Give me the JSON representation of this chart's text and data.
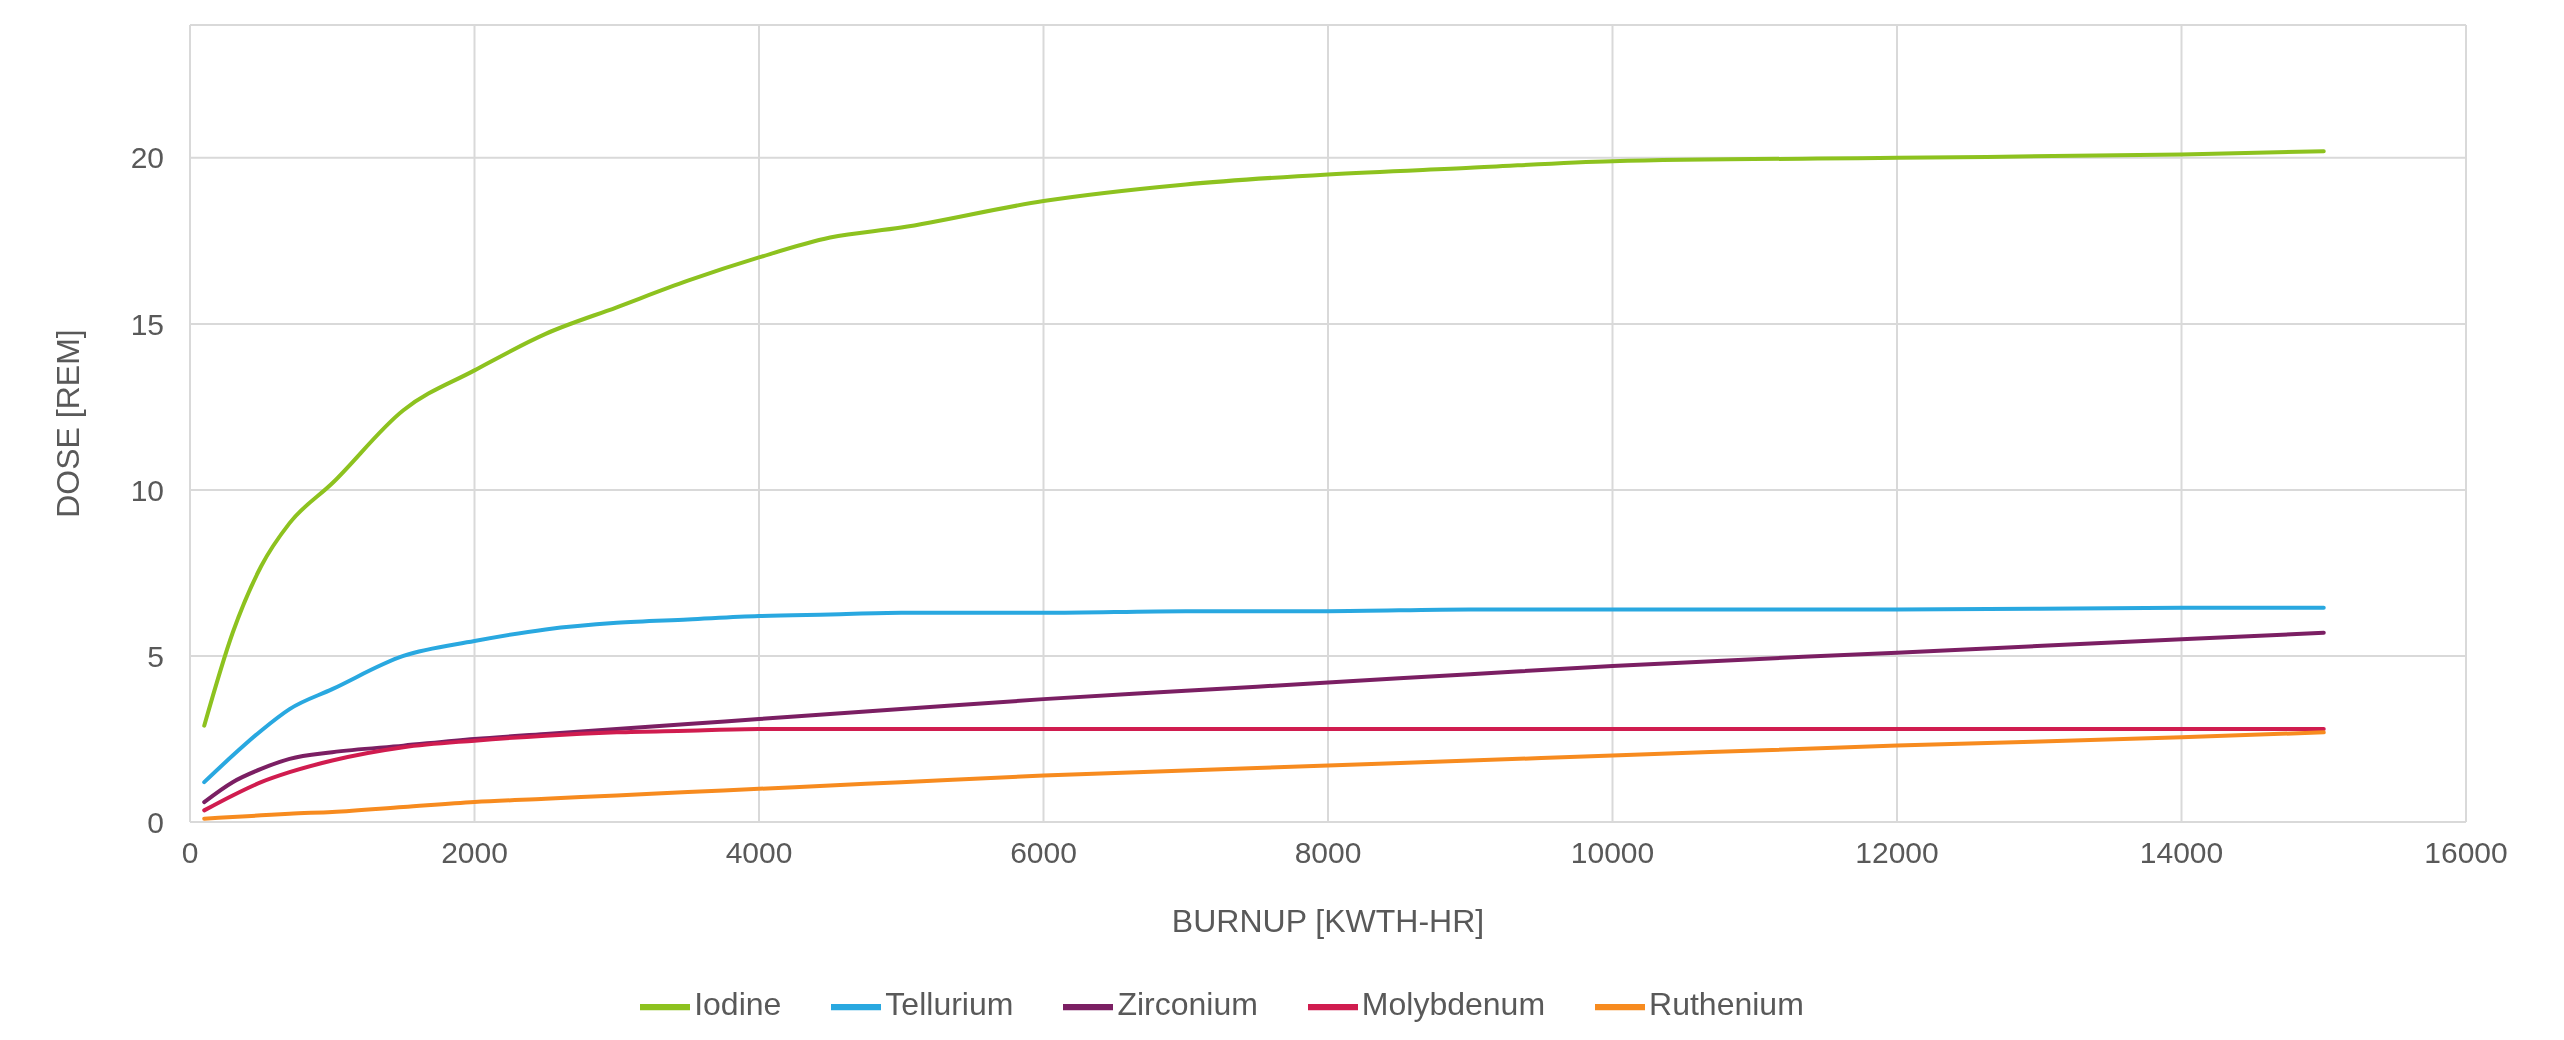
{
  "chart_data": {
    "type": "line",
    "xlabel": "BURNUP [KWTH-HR]",
    "ylabel": "DOSE [REM]",
    "x": [
      100,
      300,
      500,
      700,
      1000,
      1500,
      2000,
      2500,
      3000,
      3500,
      4000,
      4500,
      5000,
      6000,
      7000,
      8000,
      9000,
      10000,
      12000,
      14000,
      15000
    ],
    "series": [
      {
        "name": "Iodine",
        "color": "#8dc21f",
        "values": [
          2.9,
          5.7,
          7.7,
          9.0,
          10.2,
          12.4,
          13.6,
          14.7,
          15.5,
          16.3,
          17.0,
          17.6,
          17.9,
          18.7,
          19.2,
          19.5,
          19.7,
          19.9,
          20.0,
          20.1,
          20.2
        ]
      },
      {
        "name": "Tellurium",
        "color": "#29a8e0",
        "values": [
          1.2,
          2.0,
          2.75,
          3.4,
          4.0,
          5.0,
          5.45,
          5.8,
          6.0,
          6.1,
          6.2,
          6.25,
          6.3,
          6.3,
          6.35,
          6.35,
          6.4,
          6.4,
          6.4,
          6.45,
          6.45
        ]
      },
      {
        "name": "Zirconium",
        "color": "#7b1f63",
        "values": [
          0.6,
          1.2,
          1.6,
          1.9,
          2.1,
          2.3,
          2.5,
          2.65,
          2.8,
          2.95,
          3.1,
          3.25,
          3.4,
          3.7,
          3.95,
          4.2,
          4.45,
          4.7,
          5.1,
          5.5,
          5.7
        ]
      },
      {
        "name": "Molybdenum",
        "color": "#d01c4f",
        "values": [
          0.35,
          0.8,
          1.2,
          1.5,
          1.85,
          2.25,
          2.45,
          2.6,
          2.7,
          2.75,
          2.8,
          2.8,
          2.8,
          2.8,
          2.8,
          2.8,
          2.8,
          2.8,
          2.8,
          2.8,
          2.8
        ]
      },
      {
        "name": "Ruthenium",
        "color": "#f78b1f",
        "values": [
          0.1,
          0.15,
          0.2,
          0.25,
          0.3,
          0.45,
          0.6,
          0.7,
          0.8,
          0.9,
          1.0,
          1.1,
          1.2,
          1.4,
          1.55,
          1.7,
          1.85,
          2.0,
          2.3,
          2.55,
          2.7
        ]
      }
    ],
    "xlim": [
      0,
      16000
    ],
    "xticks": [
      0,
      2000,
      4000,
      6000,
      8000,
      10000,
      12000,
      14000,
      16000
    ],
    "ylim": [
      0,
      24
    ],
    "yticks": [
      0,
      5,
      10,
      15,
      20
    ],
    "grid": true,
    "legend": "bottom",
    "marker": "none",
    "line_style": "solid"
  }
}
